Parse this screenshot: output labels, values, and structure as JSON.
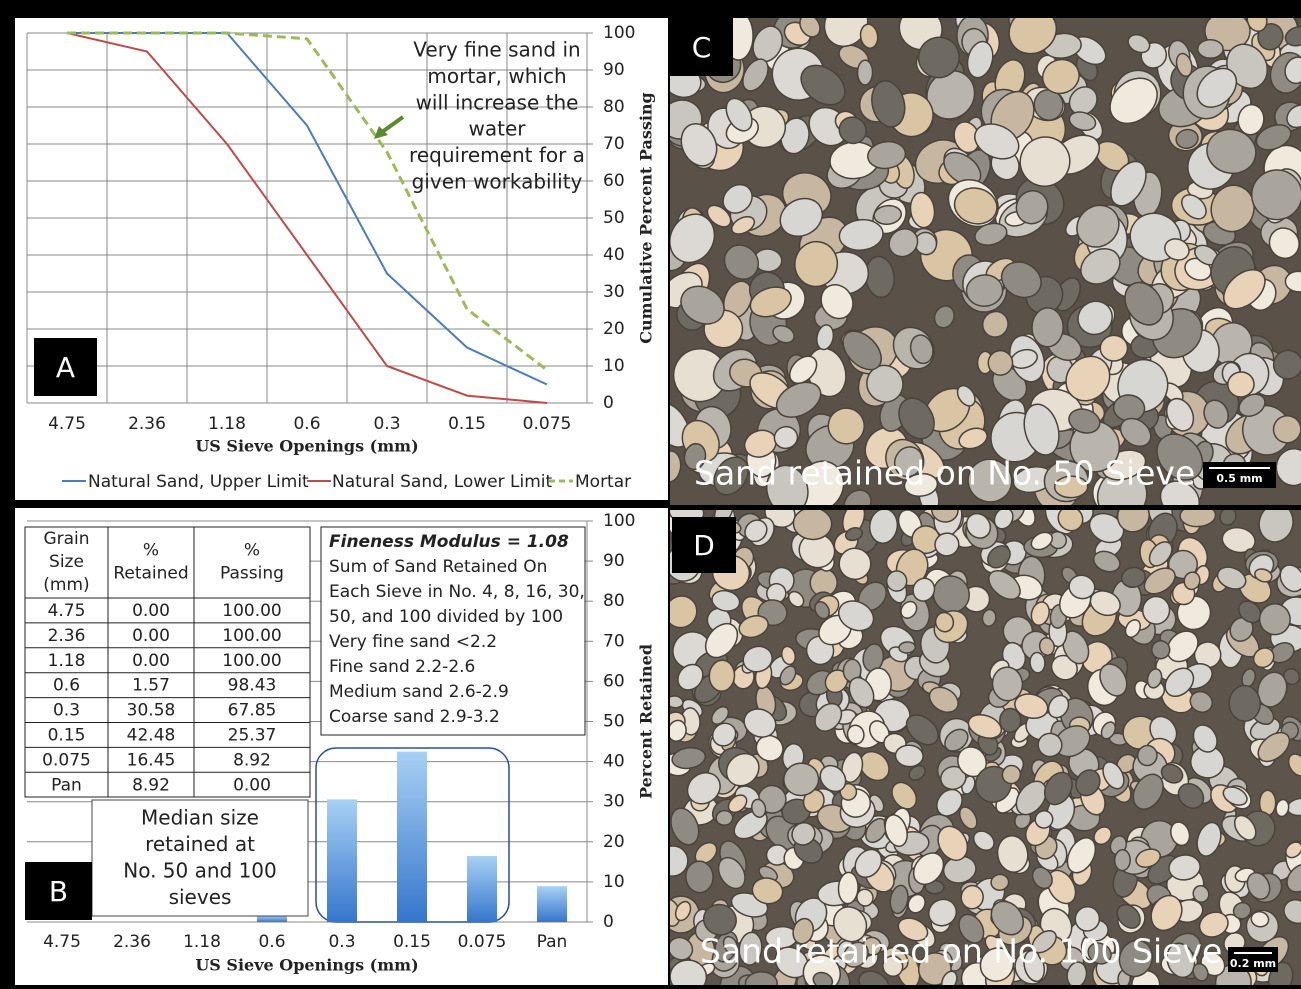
{
  "chart_data": [
    {
      "type": "line",
      "panel": "A",
      "categories": [
        "4.75",
        "2.36",
        "1.18",
        "0.6",
        "0.3",
        "0.15",
        "0.075"
      ],
      "series": [
        {
          "name": "Natural Sand, Upper Limit",
          "color": "#4a7ebb",
          "values": [
            100,
            100,
            100,
            75,
            35,
            15,
            5
          ]
        },
        {
          "name": "Natural Sand, Lower Limit",
          "color": "#be4b48",
          "values": [
            100,
            95,
            70,
            40,
            10,
            2,
            0
          ]
        },
        {
          "name": "Mortar",
          "color": "#9bbb59",
          "dashed": true,
          "values": [
            100,
            100,
            100,
            98.43,
            67.85,
            25.37,
            8.92
          ]
        }
      ],
      "ylim": [
        0,
        100
      ],
      "yticks": [
        0,
        10,
        20,
        30,
        40,
        50,
        60,
        70,
        80,
        90,
        100
      ],
      "grid": true,
      "x_label": "US Sieve Openings (mm)",
      "y_label": "Cumulative Percent Passing",
      "annotation": [
        "Very fine sand in",
        "mortar, which",
        "will increase the",
        "water",
        "requirement for a",
        "given workability"
      ]
    },
    {
      "type": "bar",
      "panel": "B",
      "categories": [
        "4.75",
        "2.36",
        "1.18",
        "0.6",
        "0.3",
        "0.15",
        "0.075",
        "Pan"
      ],
      "values": [
        0,
        0,
        0,
        1.57,
        30.58,
        42.48,
        16.45,
        8.92
      ],
      "color": "#4a8ad8",
      "ylim": [
        0,
        100
      ],
      "yticks": [
        0,
        10,
        20,
        30,
        40,
        50,
        60,
        70,
        80,
        90,
        100
      ],
      "grid": true,
      "x_label": "US Sieve Openings (mm)",
      "y_label": "Percent Retained",
      "annotation": [
        "Median size",
        "retained at",
        "No. 50 and 100",
        "sieves"
      ],
      "table": {
        "header": [
          [
            "Grain",
            "Size",
            "(mm)"
          ],
          [
            "%",
            "Retained"
          ],
          [
            "%",
            "Passing"
          ]
        ],
        "rows": [
          [
            "4.75",
            "0.00",
            "100.00"
          ],
          [
            "2.36",
            "0.00",
            "100.00"
          ],
          [
            "1.18",
            "0.00",
            "100.00"
          ],
          [
            "0.6",
            "1.57",
            "98.43"
          ],
          [
            "0.3",
            "30.58",
            "67.85"
          ],
          [
            "0.15",
            "42.48",
            "25.37"
          ],
          [
            "0.075",
            "16.45",
            "8.92"
          ],
          [
            "Pan",
            "8.92",
            "0.00"
          ]
        ]
      },
      "fineness": [
        "Fineness Modulus = 1.08",
        "Sum of Sand Retained On",
        "Each Sieve in No. 4, 8, 16, 30,",
        "50, and 100 divided by 100",
        "Very fine sand <2.2",
        "Fine sand 2.2-2.6",
        "Medium sand 2.6-2.9",
        "Coarse  sand 2.9-3.2"
      ]
    }
  ],
  "photos": [
    {
      "panel": "C",
      "caption": "Sand retained on No. 50 Sieve",
      "scale": "0.5 mm"
    },
    {
      "panel": "D",
      "caption": "Sand retained on No. 100 Sieve",
      "scale": "0.2 mm"
    }
  ]
}
